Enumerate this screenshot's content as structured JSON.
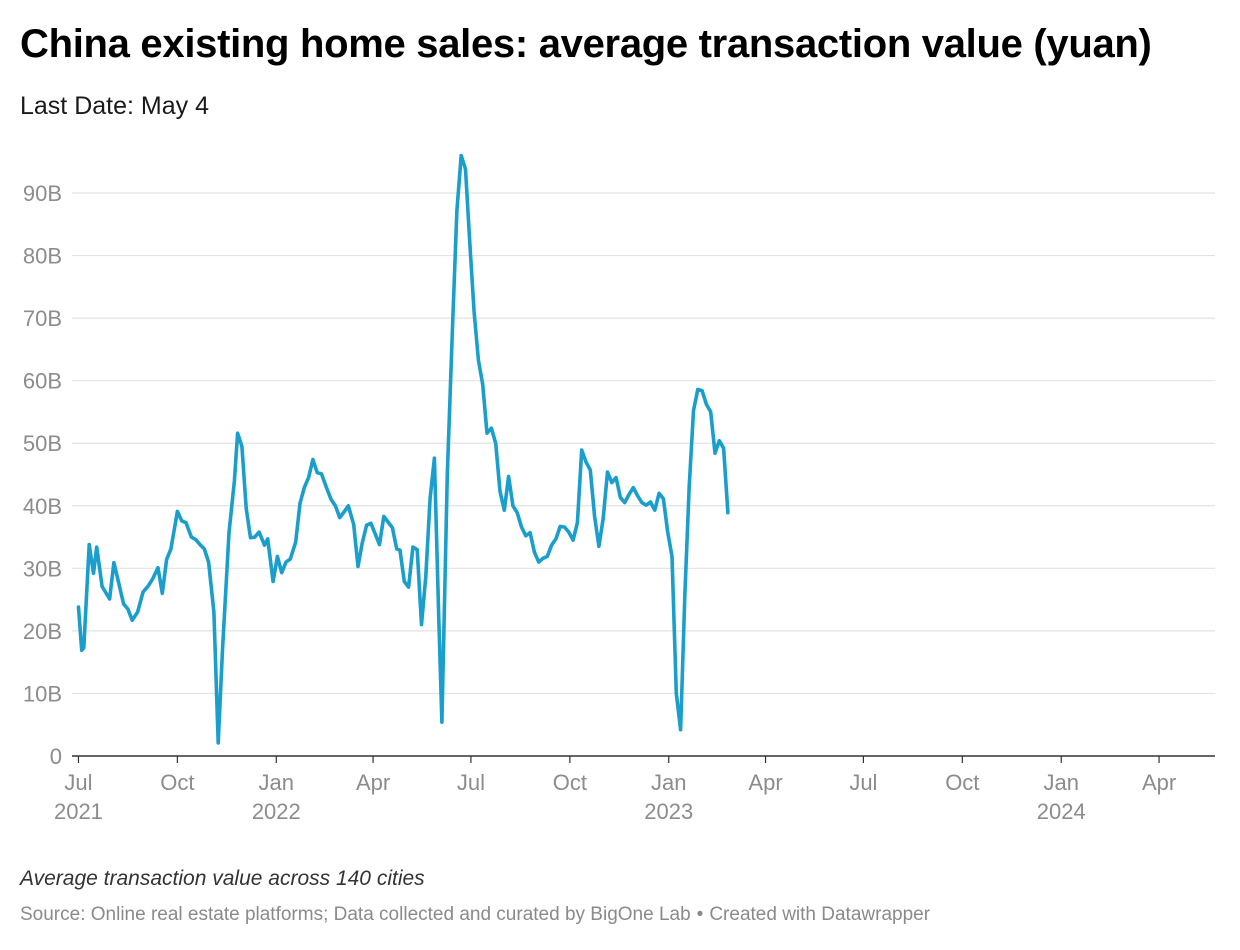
{
  "title": "China existing home sales: average transaction value (yuan)",
  "subtitle": "Last Date: May 4",
  "note": "Average transaction value across 140 cities",
  "source": "Source: Online real estate platforms; Data collected and curated by BigOne Lab",
  "credit": "Created with Datawrapper",
  "separator": "•",
  "colors": {
    "line": "#1a9ecb",
    "grid": "#e2e2e2",
    "axis": "#333333",
    "tick_text": "#8c8c8c"
  },
  "chart_data": {
    "type": "line",
    "title": "China existing home sales: average transaction value (yuan)",
    "xlabel": "",
    "ylabel": "",
    "x_axis": "weekly dates",
    "ylim": [
      0,
      97
    ],
    "yticks": [
      {
        "value": 0,
        "label": "0"
      },
      {
        "value": 10,
        "label": "10B"
      },
      {
        "value": 20,
        "label": "20B"
      },
      {
        "value": 30,
        "label": "30B"
      },
      {
        "value": 40,
        "label": "40B"
      },
      {
        "value": 50,
        "label": "50B"
      },
      {
        "value": 60,
        "label": "60B"
      },
      {
        "value": 70,
        "label": "70B"
      },
      {
        "value": 80,
        "label": "80B"
      },
      {
        "value": 90,
        "label": "90B"
      }
    ],
    "xticks": [
      {
        "date": "2021-07-01",
        "label": "Jul",
        "year": "2021"
      },
      {
        "date": "2021-10-01",
        "label": "Oct",
        "year": ""
      },
      {
        "date": "2022-01-01",
        "label": "Jan",
        "year": "2022"
      },
      {
        "date": "2022-04-01",
        "label": "Apr",
        "year": ""
      },
      {
        "date": "2022-07-01",
        "label": "Jul",
        "year": ""
      },
      {
        "date": "2022-10-01",
        "label": "Oct",
        "year": ""
      },
      {
        "date": "2023-01-01",
        "label": "Jan",
        "year": "2023"
      },
      {
        "date": "2023-04-01",
        "label": "Apr",
        "year": ""
      },
      {
        "date": "2023-07-01",
        "label": "Jul",
        "year": ""
      },
      {
        "date": "2023-10-01",
        "label": "Oct",
        "year": ""
      },
      {
        "date": "2024-01-01",
        "label": "Jan",
        "year": "2024"
      },
      {
        "date": "2024-04-01",
        "label": "Apr",
        "year": ""
      }
    ],
    "x_range": [
      "2021-06-25",
      "2024-05-23"
    ],
    "grid": true,
    "series": [
      {
        "values": [
          [
            "2021-07-01",
            23.8
          ],
          [
            "2021-07-04",
            16.9
          ],
          [
            "2021-07-06",
            17.3
          ],
          [
            "2021-07-11",
            33.8
          ],
          [
            "2021-07-15",
            29.2
          ],
          [
            "2021-07-18",
            33.4
          ],
          [
            "2021-07-23",
            27.1
          ],
          [
            "2021-07-30",
            25.1
          ],
          [
            "2021-08-03",
            30.9
          ],
          [
            "2021-08-07",
            28.0
          ],
          [
            "2021-08-12",
            24.3
          ],
          [
            "2021-08-16",
            23.5
          ],
          [
            "2021-08-20",
            21.7
          ],
          [
            "2021-08-25",
            23.0
          ],
          [
            "2021-08-30",
            26.2
          ],
          [
            "2021-09-04",
            27.2
          ],
          [
            "2021-09-08",
            28.3
          ],
          [
            "2021-09-13",
            30.1
          ],
          [
            "2021-09-17",
            26.0
          ],
          [
            "2021-09-21",
            31.4
          ],
          [
            "2021-09-25",
            33.1
          ],
          [
            "2021-10-01",
            39.1
          ],
          [
            "2021-10-05",
            37.6
          ],
          [
            "2021-10-09",
            37.3
          ],
          [
            "2021-10-14",
            35.0
          ],
          [
            "2021-10-18",
            34.6
          ],
          [
            "2021-10-22",
            33.8
          ],
          [
            "2021-10-26",
            33.1
          ],
          [
            "2021-10-30",
            31.0
          ],
          [
            "2021-11-04",
            23.0
          ],
          [
            "2021-11-08",
            2.1
          ],
          [
            "2021-11-12",
            17.0
          ],
          [
            "2021-11-18",
            35.7
          ],
          [
            "2021-11-23",
            44.0
          ],
          [
            "2021-11-26",
            51.6
          ],
          [
            "2021-11-30",
            49.5
          ],
          [
            "2021-12-04",
            39.6
          ],
          [
            "2021-12-08",
            34.9
          ],
          [
            "2021-12-12",
            35.0
          ],
          [
            "2021-12-16",
            35.8
          ],
          [
            "2021-12-21",
            33.7
          ],
          [
            "2021-12-24",
            34.7
          ],
          [
            "2021-12-29",
            27.9
          ],
          [
            "2022-01-02",
            31.9
          ],
          [
            "2022-01-06",
            29.3
          ],
          [
            "2022-01-10",
            31.0
          ],
          [
            "2022-01-14",
            31.5
          ],
          [
            "2022-01-19",
            34.2
          ],
          [
            "2022-01-23",
            40.4
          ],
          [
            "2022-01-27",
            42.9
          ],
          [
            "2022-01-31",
            44.5
          ],
          [
            "2022-02-04",
            47.4
          ],
          [
            "2022-02-08",
            45.3
          ],
          [
            "2022-02-12",
            45.1
          ],
          [
            "2022-02-16",
            43.2
          ],
          [
            "2022-02-21",
            41.0
          ],
          [
            "2022-02-25",
            40.0
          ],
          [
            "2022-03-01",
            38.1
          ],
          [
            "2022-03-05",
            39.0
          ],
          [
            "2022-03-09",
            40.0
          ],
          [
            "2022-03-14",
            37.0
          ],
          [
            "2022-03-18",
            30.3
          ],
          [
            "2022-03-22",
            34.1
          ],
          [
            "2022-03-26",
            36.9
          ],
          [
            "2022-03-30",
            37.2
          ],
          [
            "2022-04-03",
            35.5
          ],
          [
            "2022-04-07",
            33.8
          ],
          [
            "2022-04-11",
            38.3
          ],
          [
            "2022-04-15",
            37.4
          ],
          [
            "2022-04-19",
            36.5
          ],
          [
            "2022-04-23",
            33.1
          ],
          [
            "2022-04-26",
            32.9
          ],
          [
            "2022-04-30",
            27.9
          ],
          [
            "2022-05-04",
            27.0
          ],
          [
            "2022-05-08",
            33.4
          ],
          [
            "2022-05-12",
            33.0
          ],
          [
            "2022-05-16",
            21.0
          ],
          [
            "2022-05-20",
            28.7
          ],
          [
            "2022-05-24",
            41.2
          ],
          [
            "2022-05-28",
            47.6
          ],
          [
            "2022-06-01",
            22.5
          ],
          [
            "2022-06-04",
            5.4
          ],
          [
            "2022-06-09",
            45.0
          ],
          [
            "2022-06-14",
            69.0
          ],
          [
            "2022-06-18",
            87.2
          ],
          [
            "2022-06-22",
            96.0
          ],
          [
            "2022-06-26",
            93.8
          ],
          [
            "2022-06-30",
            82.0
          ],
          [
            "2022-07-04",
            71.0
          ],
          [
            "2022-07-08",
            63.3
          ],
          [
            "2022-07-12",
            59.4
          ],
          [
            "2022-07-16",
            51.6
          ],
          [
            "2022-07-20",
            52.4
          ],
          [
            "2022-07-24",
            50.0
          ],
          [
            "2022-07-28",
            42.3
          ],
          [
            "2022-08-01",
            39.3
          ],
          [
            "2022-08-05",
            44.7
          ],
          [
            "2022-08-09",
            40.0
          ],
          [
            "2022-08-13",
            38.9
          ],
          [
            "2022-08-17",
            36.6
          ],
          [
            "2022-08-21",
            35.2
          ],
          [
            "2022-08-25",
            35.7
          ],
          [
            "2022-08-29",
            32.6
          ],
          [
            "2022-09-02",
            31.0
          ],
          [
            "2022-09-06",
            31.6
          ],
          [
            "2022-09-10",
            31.9
          ],
          [
            "2022-09-14",
            33.7
          ],
          [
            "2022-09-18",
            34.7
          ],
          [
            "2022-09-22",
            36.7
          ],
          [
            "2022-09-26",
            36.6
          ],
          [
            "2022-09-30",
            35.8
          ],
          [
            "2022-10-04",
            34.5
          ],
          [
            "2022-10-08",
            37.3
          ],
          [
            "2022-10-12",
            48.9
          ],
          [
            "2022-10-16",
            47.0
          ],
          [
            "2022-10-20",
            45.7
          ],
          [
            "2022-10-24",
            38.3
          ],
          [
            "2022-10-28",
            33.5
          ],
          [
            "2022-11-01",
            38.0
          ],
          [
            "2022-11-05",
            45.4
          ],
          [
            "2022-11-09",
            43.7
          ],
          [
            "2022-11-13",
            44.5
          ],
          [
            "2022-11-17",
            41.3
          ],
          [
            "2022-11-21",
            40.5
          ],
          [
            "2022-11-25",
            41.8
          ],
          [
            "2022-11-29",
            42.9
          ],
          [
            "2022-12-03",
            41.6
          ],
          [
            "2022-12-07",
            40.5
          ],
          [
            "2022-12-11",
            40.1
          ],
          [
            "2022-12-15",
            40.6
          ],
          [
            "2022-12-19",
            39.3
          ],
          [
            "2022-12-23",
            42.0
          ],
          [
            "2022-12-27",
            41.1
          ],
          [
            "2022-12-31",
            35.8
          ],
          [
            "2023-01-04",
            31.9
          ],
          [
            "2023-01-08",
            10.0
          ],
          [
            "2023-01-12",
            4.2
          ],
          [
            "2023-01-16",
            26.0
          ],
          [
            "2023-01-20",
            43.1
          ],
          [
            "2023-01-24",
            55.2
          ],
          [
            "2023-01-28",
            58.6
          ],
          [
            "2023-02-01",
            58.4
          ],
          [
            "2023-02-05",
            56.2
          ],
          [
            "2023-02-09",
            55.0
          ],
          [
            "2023-02-13",
            48.4
          ],
          [
            "2023-02-17",
            50.4
          ],
          [
            "2023-02-21",
            49.2
          ],
          [
            "2023-02-25",
            38.9
          ]
        ]
      }
    ]
  }
}
